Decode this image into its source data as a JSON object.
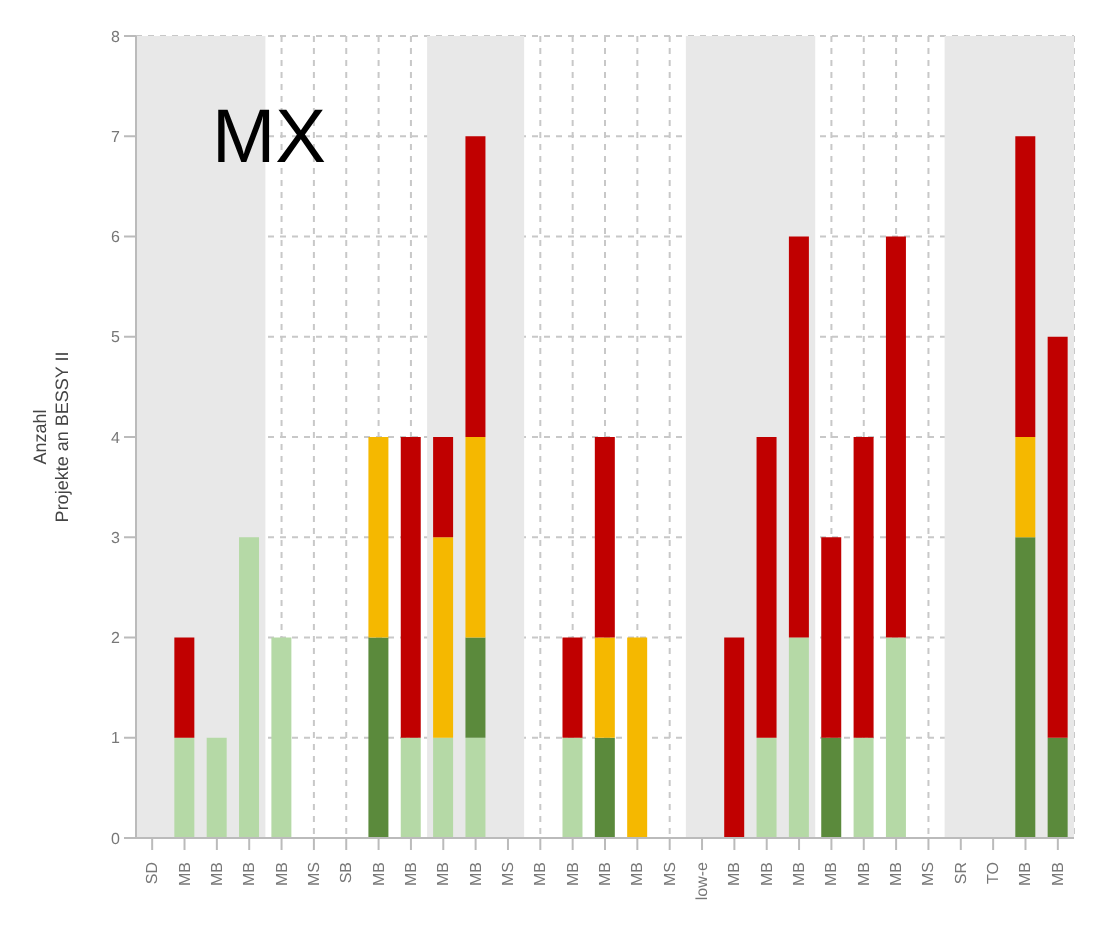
{
  "chart_data": {
    "type": "bar",
    "stacked": true,
    "ylabel": "Anzahl\nProjekte an BESSY II",
    "annotations": [
      "MX"
    ],
    "categories": [
      "SD",
      "MB",
      "MB",
      "MB",
      "MB",
      "MS",
      "SB",
      "MB",
      "MB",
      "MB",
      "MB",
      "MS",
      "MB",
      "MB",
      "MB",
      "MB",
      "MS",
      "low-e",
      "MB",
      "MB",
      "MB",
      "MB",
      "MB",
      "MB",
      "MS",
      "SR",
      "TO",
      "MB",
      "MB"
    ],
    "series": [
      {
        "color": "#b5d9a6",
        "values": [
          0,
          1,
          1,
          3,
          2,
          0,
          0,
          0,
          1,
          1,
          1,
          0,
          0,
          1,
          0,
          0,
          0,
          0,
          0,
          1,
          2,
          0,
          1,
          2,
          0,
          0,
          0,
          0,
          0
        ]
      },
      {
        "color": "#5b8a3c",
        "values": [
          0,
          0,
          0,
          0,
          0,
          0,
          0,
          2,
          0,
          0,
          1,
          0,
          0,
          0,
          1,
          0,
          0,
          0,
          0,
          0,
          0,
          1,
          0,
          0,
          0,
          0,
          0,
          3,
          1
        ]
      },
      {
        "color": "#f5b800",
        "values": [
          0,
          0,
          0,
          0,
          0,
          0,
          0,
          2,
          0,
          2,
          2,
          0,
          0,
          0,
          1,
          2,
          0,
          0,
          0,
          0,
          0,
          0,
          0,
          0,
          0,
          0,
          0,
          1,
          0
        ]
      },
      {
        "color": "#c00000",
        "values": [
          0,
          1,
          0,
          0,
          0,
          0,
          0,
          0,
          3,
          1,
          3,
          0,
          0,
          1,
          2,
          0,
          0,
          0,
          2,
          3,
          4,
          2,
          3,
          4,
          0,
          0,
          0,
          3,
          4
        ]
      }
    ],
    "ylim": [
      0,
      8
    ],
    "yticks": [
      0,
      1,
      2,
      3,
      4,
      5,
      6,
      7,
      8
    ],
    "grid": true,
    "legend": false
  }
}
